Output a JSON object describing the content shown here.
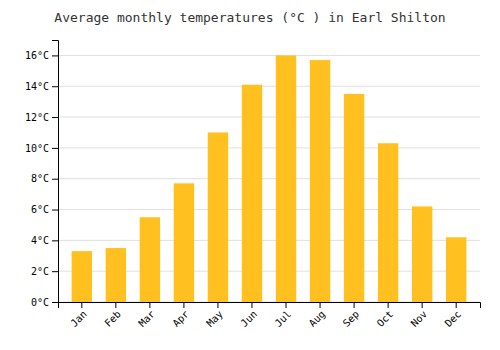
{
  "chart_data": {
    "type": "bar",
    "title": "Average monthly temperatures (°C ) in Earl Shilton",
    "categories": [
      "Jan",
      "Feb",
      "Mar",
      "Apr",
      "May",
      "Jun",
      "Jul",
      "Aug",
      "Sep",
      "Oct",
      "Nov",
      "Dec"
    ],
    "values": [
      3.3,
      3.5,
      5.5,
      7.7,
      11.0,
      14.1,
      16.0,
      15.7,
      13.5,
      10.3,
      6.2,
      4.2
    ],
    "color": "#FFC020",
    "ylim": [
      0,
      17
    ],
    "yticks": [
      {
        "value": 0,
        "label": "0°C"
      },
      {
        "value": 2,
        "label": "2°C"
      },
      {
        "value": 4,
        "label": "4°C"
      },
      {
        "value": 6,
        "label": "6°C"
      },
      {
        "value": 8,
        "label": "8°C"
      },
      {
        "value": 10,
        "label": "10°C"
      },
      {
        "value": 12,
        "label": "12°C"
      },
      {
        "value": 14,
        "label": "14°C"
      },
      {
        "value": 16,
        "label": "16°C"
      }
    ],
    "grid": true
  }
}
